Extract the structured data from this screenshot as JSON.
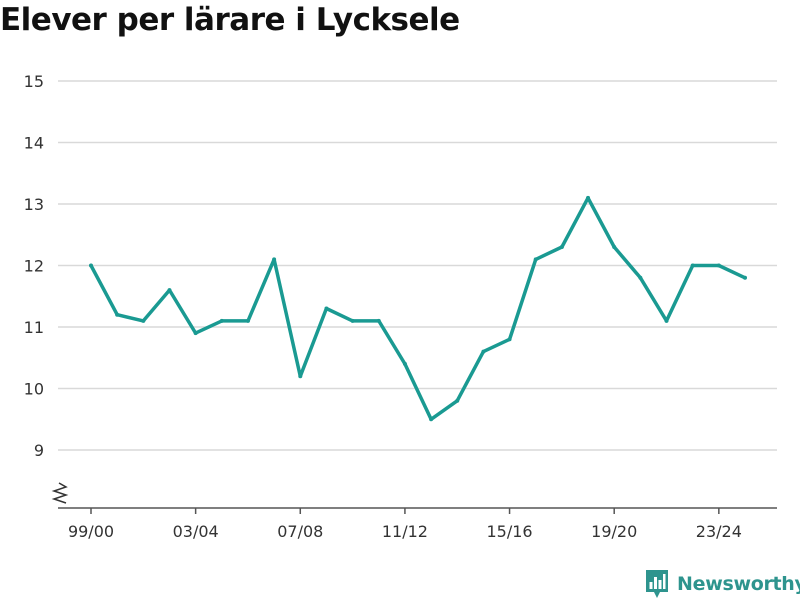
{
  "chart_data": {
    "type": "line",
    "title": "Elever per lärare i Lycksele",
    "xlabel": "",
    "ylabel": "",
    "ylim": [
      8,
      15
    ],
    "yticks": [
      9,
      10,
      11,
      12,
      13,
      14,
      15
    ],
    "ytick_labels": [
      "9",
      "10",
      "11",
      "12",
      "13",
      "14",
      "15"
    ],
    "x_axis_break": true,
    "grid": true,
    "categories": [
      "99/00",
      "00/01",
      "01/02",
      "02/03",
      "03/04",
      "04/05",
      "05/06",
      "06/07",
      "07/08",
      "08/09",
      "09/10",
      "10/11",
      "11/12",
      "12/13",
      "13/14",
      "14/15",
      "15/16",
      "16/17",
      "17/18",
      "18/19",
      "19/20",
      "20/21",
      "21/22",
      "22/23",
      "23/24",
      "24/25"
    ],
    "xtick_labels": [
      "99/00",
      "03/04",
      "07/08",
      "11/12",
      "15/16",
      "19/20",
      "23/24"
    ],
    "series": [
      {
        "color": "#1a9a92",
        "values": [
          12.0,
          11.2,
          11.1,
          11.6,
          10.9,
          11.1,
          11.1,
          12.1,
          10.2,
          11.3,
          11.1,
          11.1,
          10.4,
          9.5,
          9.8,
          10.6,
          10.8,
          12.1,
          12.3,
          13.1,
          12.3,
          11.8,
          11.1,
          12.0,
          12.0,
          11.8
        ]
      }
    ]
  },
  "brand": {
    "name": "Newsworthy",
    "icon": "bar-chart-speech-bubble-icon",
    "color": "#2e948e"
  }
}
